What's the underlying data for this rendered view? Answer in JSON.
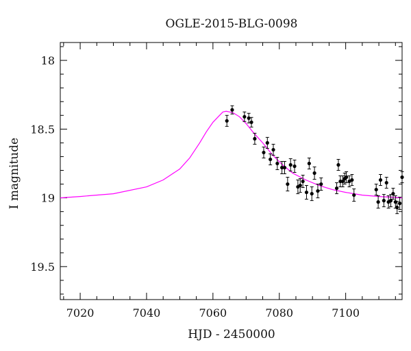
{
  "chart_data": {
    "type": "scatter",
    "title": "OGLE-2015-BLG-0098",
    "xlabel": "HJD - 2450000",
    "ylabel": "I magnitude",
    "xlim": [
      7014,
      7117
    ],
    "ylim": [
      19.74,
      17.87
    ],
    "y_inverted": true,
    "x_ticks": [
      7020,
      7040,
      7060,
      7080,
      7100
    ],
    "y_ticks": [
      18,
      18.5,
      19,
      19.5
    ],
    "grid": false,
    "colors": {
      "observed": "#000000",
      "model": "#ff00ff"
    },
    "series": [
      {
        "kind": "points_with_errorbars",
        "x": [
          7064.2,
          7065.8,
          7069.5,
          7070.8,
          7071.6,
          7072.6,
          7075.3,
          7076.4,
          7077.3,
          7078.2,
          7079.4,
          7080.8,
          7081.6,
          7082.5,
          7083.4,
          7084.6,
          7085.6,
          7086.3,
          7087.1,
          7088.2,
          7089.0,
          7089.8,
          7090.6,
          7091.6,
          7092.6,
          7097.3,
          7097.8,
          7098.4,
          7099.1,
          7099.7,
          7100.2,
          7101.1,
          7101.9,
          7102.5,
          7109.2,
          7109.8,
          7110.5,
          7111.5,
          7112.3,
          7112.9,
          7113.6,
          7114.3,
          7115.0,
          7115.5,
          7116.3,
          7117.0
        ],
        "y": [
          18.44,
          18.36,
          18.41,
          18.42,
          18.45,
          18.57,
          18.67,
          18.6,
          18.72,
          18.65,
          18.75,
          18.78,
          18.78,
          18.9,
          18.76,
          18.77,
          18.92,
          18.91,
          18.88,
          18.96,
          18.75,
          18.97,
          18.82,
          18.95,
          18.9,
          18.93,
          18.76,
          18.88,
          18.88,
          18.86,
          18.85,
          18.88,
          18.87,
          18.98,
          18.94,
          19.03,
          18.87,
          19.02,
          18.89,
          19.03,
          19.02,
          18.97,
          19.03,
          19.07,
          19.04,
          18.85
        ],
        "yerr": [
          0.04,
          0.03,
          0.035,
          0.035,
          0.035,
          0.04,
          0.04,
          0.04,
          0.04,
          0.04,
          0.045,
          0.045,
          0.045,
          0.05,
          0.045,
          0.045,
          0.05,
          0.05,
          0.045,
          0.05,
          0.04,
          0.05,
          0.045,
          0.05,
          0.045,
          0.04,
          0.04,
          0.04,
          0.04,
          0.04,
          0.04,
          0.04,
          0.04,
          0.045,
          0.04,
          0.045,
          0.04,
          0.045,
          0.04,
          0.045,
          0.045,
          0.04,
          0.045,
          0.045,
          0.045,
          0.04
        ]
      },
      {
        "kind": "model_curve",
        "x": [
          7014,
          7020,
          7030,
          7040,
          7045,
          7050,
          7053,
          7056,
          7058,
          7060,
          7062,
          7063,
          7064,
          7066,
          7068,
          7070,
          7072,
          7075,
          7078,
          7081,
          7084,
          7088,
          7092,
          7096,
          7100,
          7105,
          7110,
          7117
        ],
        "y": [
          19.0,
          18.99,
          18.97,
          18.92,
          18.87,
          18.79,
          18.71,
          18.6,
          18.52,
          18.45,
          18.4,
          18.375,
          18.37,
          18.38,
          18.41,
          18.46,
          18.52,
          18.6,
          18.69,
          18.76,
          18.82,
          18.87,
          18.91,
          18.94,
          18.96,
          18.98,
          18.99,
          19.0
        ]
      }
    ]
  }
}
